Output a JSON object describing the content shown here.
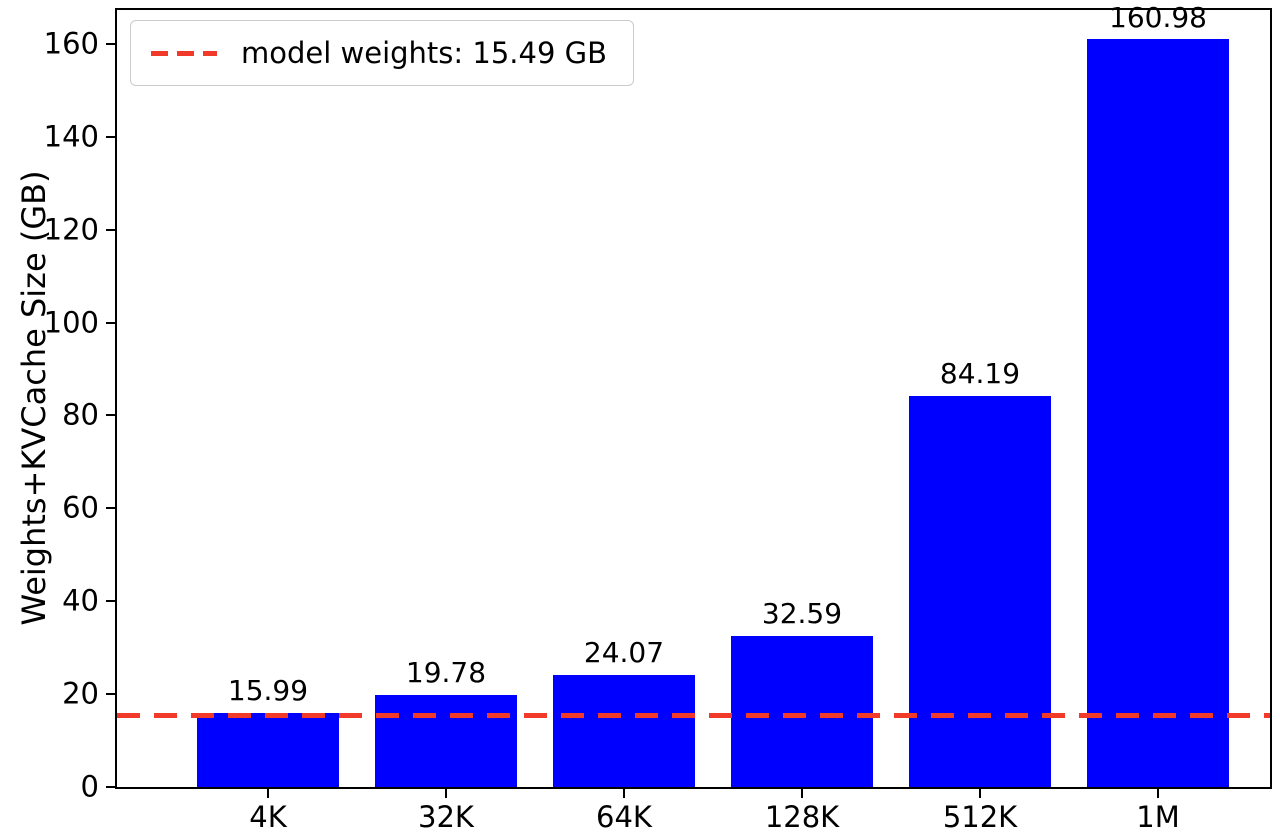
{
  "chart_data": {
    "type": "bar",
    "title": "",
    "xlabel": "",
    "ylabel": "Weights+KVCache Size (GB)",
    "categories": [
      "4K",
      "32K",
      "64K",
      "128K",
      "512K",
      "1M"
    ],
    "values": [
      15.99,
      19.78,
      24.07,
      32.59,
      84.19,
      160.98
    ],
    "bar_value_labels": [
      "15.99",
      "19.78",
      "24.07",
      "32.59",
      "84.19",
      "160.98"
    ],
    "yticks": [
      0,
      20,
      40,
      60,
      80,
      100,
      120,
      140,
      160
    ],
    "ytick_labels": [
      "0",
      "20",
      "40",
      "60",
      "80",
      "100",
      "120",
      "140",
      "160"
    ],
    "ylim": [
      0,
      167.3
    ],
    "grid": false,
    "bar_color": "#0000ff",
    "reference_line": {
      "value": 15.49,
      "style": "dashed",
      "color": "#f23a2a"
    },
    "legend": {
      "position": "upper left",
      "entries": [
        {
          "label": "model weights: 15.49 GB",
          "style": "dashed-line",
          "color": "#f23a2a"
        }
      ]
    }
  }
}
